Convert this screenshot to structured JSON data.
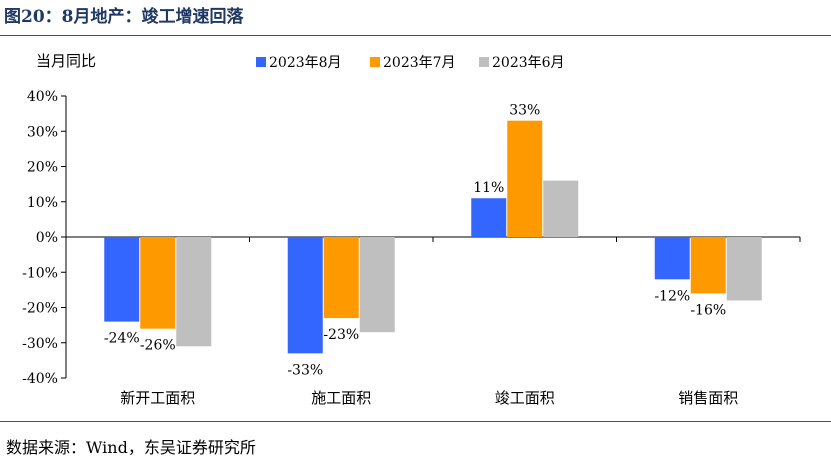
{
  "title": "图20：8月地产：竣工增速回落",
  "source": "数据来源：Wind，东吴证券研究所",
  "chart_data": {
    "type": "bar",
    "title": "",
    "ylabel": "当月同比",
    "xlabel": "",
    "categories": [
      "新开工面积",
      "施工面积",
      "竣工面积",
      "销售面积"
    ],
    "series": [
      {
        "name": "2023年8月",
        "color": "#3366ff",
        "values": [
          -24,
          -33,
          11,
          -12
        ]
      },
      {
        "name": "2023年7月",
        "color": "#ff9900",
        "values": [
          -26,
          -23,
          33,
          -16
        ]
      },
      {
        "name": "2023年6月",
        "color": "#bfbfbf",
        "values": [
          -31,
          -27,
          16,
          -18
        ]
      }
    ],
    "data_labels": [
      [
        "-24%",
        "-33%",
        "11%",
        "-12%"
      ],
      [
        "-26%",
        "-23%",
        "33%",
        "-16%"
      ],
      [
        null,
        null,
        null,
        null
      ]
    ],
    "ylim": [
      -40,
      40
    ],
    "yticks": [
      -40,
      -30,
      -20,
      -10,
      0,
      10,
      20,
      30,
      40
    ],
    "ytick_labels": [
      "-40%",
      "-30%",
      "-20%",
      "-10%",
      "0%",
      "10%",
      "20%",
      "30%",
      "40%"
    ],
    "grid": false,
    "legend_position": "top"
  }
}
